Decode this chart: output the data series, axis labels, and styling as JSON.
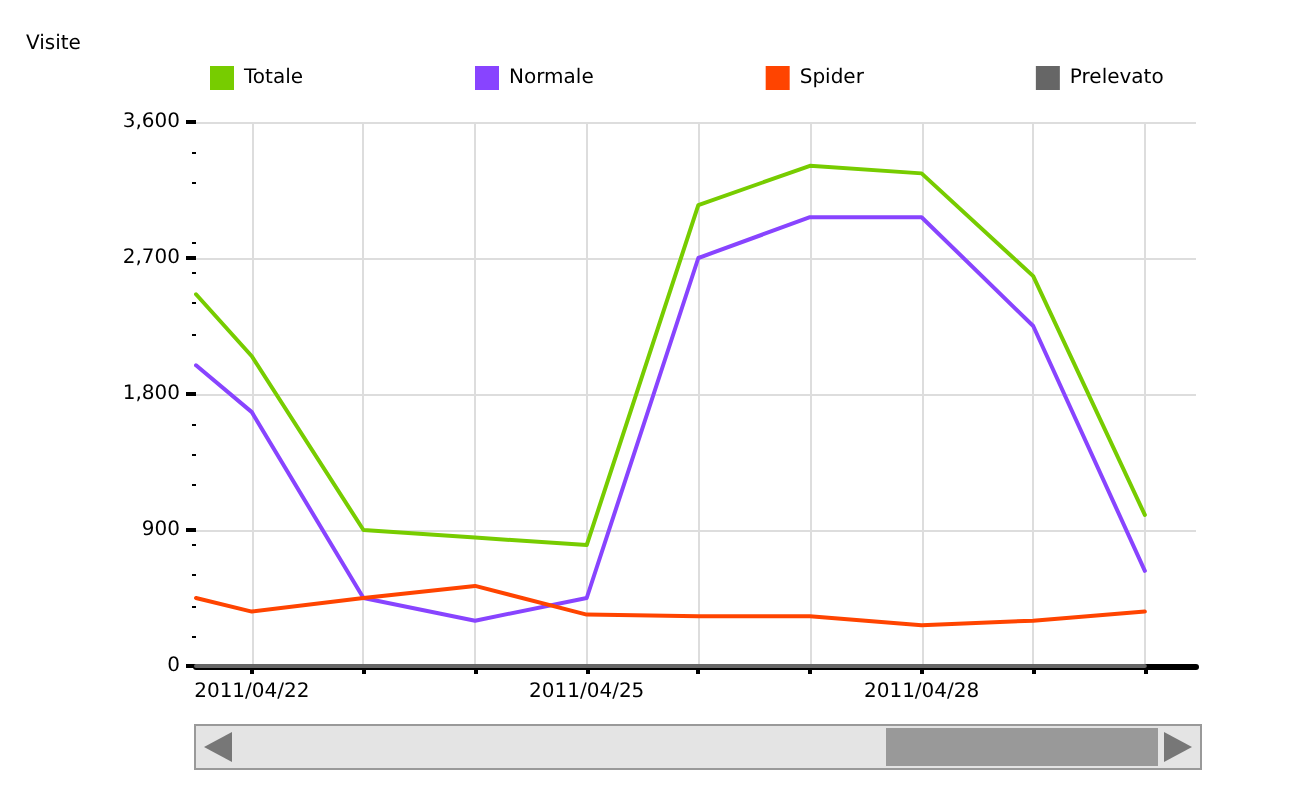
{
  "chart_data": {
    "type": "line",
    "ylabel": "Visite",
    "x": [
      "2011-04-21T12:00",
      "2011-04-22",
      "2011-04-23",
      "2011-04-24",
      "2011-04-25",
      "2011-04-26",
      "2011-04-27",
      "2011-04-28",
      "2011-04-29",
      "2011-04-30"
    ],
    "series": [
      {
        "name": "Totale",
        "color": "#77cc00",
        "values": [
          2460,
          2050,
          900,
          850,
          800,
          3050,
          3310,
          3260,
          2580,
          1000
        ]
      },
      {
        "name": "Normale",
        "color": "#8844ff",
        "values": [
          1990,
          1680,
          450,
          300,
          450,
          2700,
          2970,
          2970,
          2250,
          630
        ]
      },
      {
        "name": "Spider",
        "color": "#ff4400",
        "values": [
          450,
          360,
          450,
          530,
          340,
          330,
          330,
          270,
          300,
          360
        ]
      },
      {
        "name": "Prelevato",
        "color": "#666666",
        "values": [
          0,
          0,
          0,
          0,
          0,
          0,
          0,
          0,
          0,
          0
        ]
      }
    ],
    "xlim": [
      "2011-04-21T12:00",
      "2011-04-30T11:00"
    ],
    "xticks": [
      {
        "value": "2011-04-22",
        "label": "2011/04/22"
      },
      {
        "value": "2011-04-23",
        "label": null
      },
      {
        "value": "2011-04-24",
        "label": null
      },
      {
        "value": "2011-04-25",
        "label": "2011/04/25"
      },
      {
        "value": "2011-04-26",
        "label": null
      },
      {
        "value": "2011-04-27",
        "label": null
      },
      {
        "value": "2011-04-28",
        "label": "2011/04/28"
      },
      {
        "value": "2011-04-29",
        "label": null
      },
      {
        "value": "2011-04-30",
        "label": null
      }
    ],
    "ylim": [
      0,
      3600
    ],
    "yticks": [
      {
        "value": 0,
        "label": "0"
      },
      {
        "value": 900,
        "label": "900"
      },
      {
        "value": 1800,
        "label": "1,800"
      },
      {
        "value": 2700,
        "label": "2,700"
      },
      {
        "value": 3600,
        "label": "3,600"
      }
    ],
    "grid": true,
    "legend": "top",
    "marker": "none",
    "line_style": "solid"
  }
}
